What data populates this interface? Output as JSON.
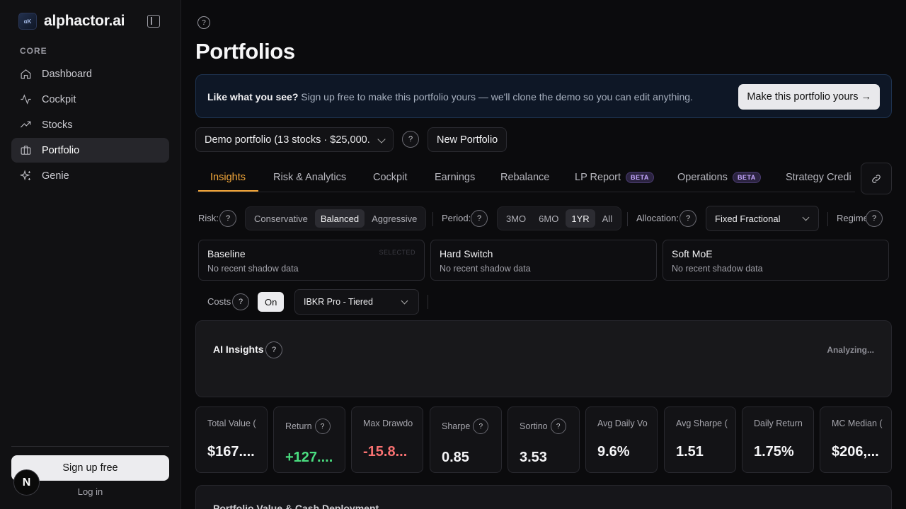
{
  "brand": {
    "name": "alphactor.ai",
    "logo_text": "αK"
  },
  "sidebar": {
    "section": "CORE",
    "items": [
      {
        "label": "Dashboard",
        "icon": "home-icon"
      },
      {
        "label": "Cockpit",
        "icon": "activity-icon"
      },
      {
        "label": "Stocks",
        "icon": "trending-up-icon"
      },
      {
        "label": "Portfolio",
        "icon": "briefcase-icon",
        "active": true
      },
      {
        "label": "Genie",
        "icon": "sparkles-icon"
      }
    ],
    "signup": "Sign up free",
    "login": "Log in",
    "badge": "N"
  },
  "page": {
    "title": "Portfolios"
  },
  "promo": {
    "bold": "Like what you see?",
    "text": "Sign up free to make this portfolio yours — we'll clone the demo so you can edit anything.",
    "button": "Make this portfolio yours →"
  },
  "portfolio": {
    "selected": "Demo portfolio (13 stocks · $25,000.",
    "new_button": "New Portfolio"
  },
  "tabs": [
    {
      "label": "Insights",
      "active": true
    },
    {
      "label": "Risk & Analytics"
    },
    {
      "label": "Cockpit"
    },
    {
      "label": "Earnings"
    },
    {
      "label": "Rebalance"
    },
    {
      "label": "LP Report",
      "badge": "BETA"
    },
    {
      "label": "Operations",
      "badge": "BETA"
    },
    {
      "label": "Strategy Credi"
    }
  ],
  "controls": {
    "risk_label": "Risk:",
    "risk_options": [
      "Conservative",
      "Balanced",
      "Aggressive"
    ],
    "risk_selected": "Balanced",
    "period_label": "Period:",
    "period_options": [
      "3MO",
      "6MO",
      "1YR",
      "All"
    ],
    "period_selected": "1YR",
    "allocation_label": "Allocation:",
    "allocation_value": "Fixed Fractional",
    "regime_label": "Regime"
  },
  "shadow_cards": [
    {
      "title": "Baseline",
      "sub": "No recent shadow data",
      "tag": "SELECTED"
    },
    {
      "title": "Hard Switch",
      "sub": "No recent shadow data"
    },
    {
      "title": "Soft MoE",
      "sub": "No recent shadow data"
    }
  ],
  "costs": {
    "label": "Costs",
    "toggle": "On",
    "broker": "IBKR Pro - Tiered"
  },
  "ai_insights": {
    "title": "AI Insights",
    "status": "Analyzing..."
  },
  "metrics": [
    {
      "label": "Total Value (",
      "value": "$167....",
      "tone": "neutral"
    },
    {
      "label": "Return",
      "value": "+127....",
      "tone": "pos",
      "help": true
    },
    {
      "label": "Max Drawdo",
      "value": "-15.8...",
      "tone": "neg"
    },
    {
      "label": "Sharpe",
      "value": "0.85",
      "tone": "neutral",
      "help": true
    },
    {
      "label": "Sortino",
      "value": "3.53",
      "tone": "neutral",
      "help": true
    },
    {
      "label": "Avg Daily Vo",
      "value": "9.6%",
      "tone": "neutral"
    },
    {
      "label": "Avg Sharpe (",
      "value": "1.51",
      "tone": "neutral"
    },
    {
      "label": "Daily Return",
      "value": "1.75%",
      "tone": "neutral"
    },
    {
      "label": "MC Median (",
      "value": "$206,...",
      "tone": "neutral"
    }
  ],
  "bottom_card": {
    "title": "Portfolio Value & Cash Deployment"
  },
  "help_glyph": "?",
  "colors": {
    "accent": "#f4a83a",
    "positive": "#4ade80",
    "negative": "#f87171",
    "beta": "#c6a8ff"
  }
}
